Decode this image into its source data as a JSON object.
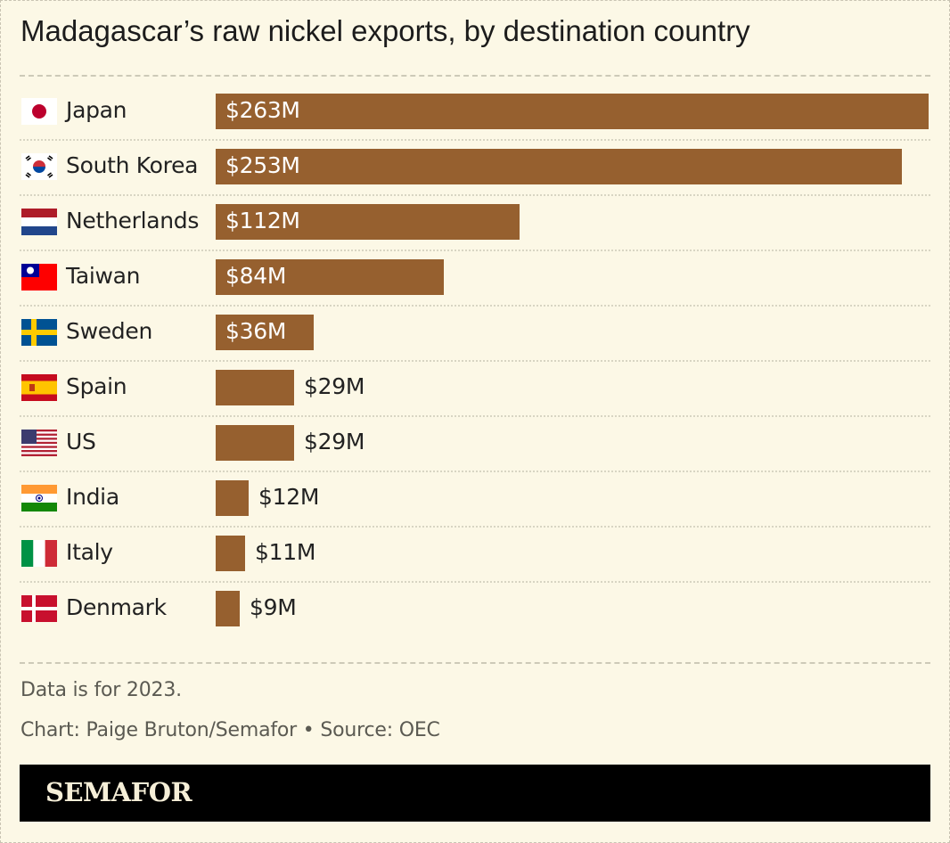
{
  "title": "Madagascar’s raw nickel exports, by destination country",
  "rows": [
    {
      "country": "Japan",
      "label": "$263M",
      "value": 263,
      "flag": "japan-flag-icon"
    },
    {
      "country": "South Korea",
      "label": "$253M",
      "value": 253,
      "flag": "south-korea-flag-icon"
    },
    {
      "country": "Netherlands",
      "label": "$112M",
      "value": 112,
      "flag": "netherlands-flag-icon"
    },
    {
      "country": "Taiwan",
      "label": "$84M",
      "value": 84,
      "flag": "taiwan-flag-icon"
    },
    {
      "country": "Sweden",
      "label": "$36M",
      "value": 36,
      "flag": "sweden-flag-icon"
    },
    {
      "country": "Spain",
      "label": "$29M",
      "value": 29,
      "flag": "spain-flag-icon"
    },
    {
      "country": "US",
      "label": "$29M",
      "value": 29,
      "flag": "us-flag-icon"
    },
    {
      "country": "India",
      "label": "$12M",
      "value": 12,
      "flag": "india-flag-icon"
    },
    {
      "country": "Italy",
      "label": "$11M",
      "value": 11,
      "flag": "italy-flag-icon"
    },
    {
      "country": "Denmark",
      "label": "$9M",
      "value": 9,
      "flag": "denmark-flag-icon"
    }
  ],
  "notes": {
    "data_note": "Data is for 2023.",
    "credit": "Chart: Paige Bruton/Semafor • Source: OEC"
  },
  "brand": "SEMAFOR",
  "colors": {
    "bar": "#96602f",
    "background": "#fcf8e6"
  },
  "chart_data": {
    "type": "bar",
    "orientation": "horizontal",
    "title": "Madagascar’s raw nickel exports, by destination country",
    "categories": [
      "Japan",
      "South Korea",
      "Netherlands",
      "Taiwan",
      "Sweden",
      "Spain",
      "US",
      "India",
      "Italy",
      "Denmark"
    ],
    "values": [
      263,
      253,
      112,
      84,
      36,
      29,
      29,
      12,
      11,
      9
    ],
    "value_labels": [
      "$263M",
      "$253M",
      "$112M",
      "$84M",
      "$36M",
      "$29M",
      "$29M",
      "$12M",
      "$11M",
      "$9M"
    ],
    "unit": "USD millions",
    "xlabel": "",
    "ylabel": "",
    "xlim": [
      0,
      263
    ],
    "grid": false,
    "legend": "none",
    "annotations": [
      "Data is for 2023.",
      "Chart: Paige Bruton/Semafor • Source: OEC"
    ]
  }
}
